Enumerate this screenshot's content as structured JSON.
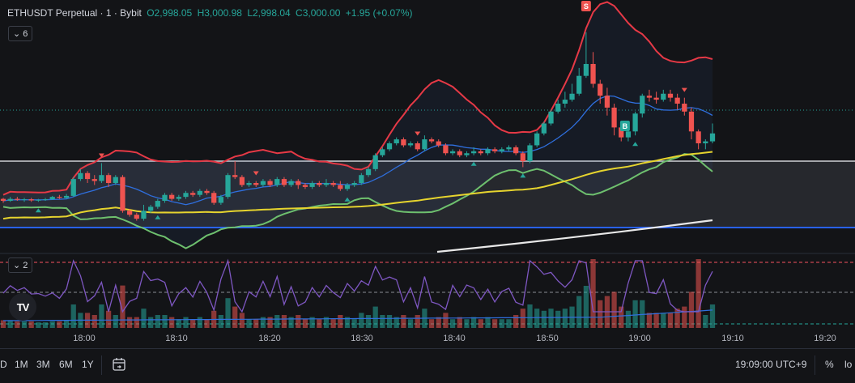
{
  "legend": {
    "symbol": "ETHUSDT Perpetual · 1 · Bybit",
    "open": "O2,998.05",
    "high": "H3,000.98",
    "low": "L2,998.04",
    "close": "C3,000.00",
    "change": "+1.95 (+0.07%)"
  },
  "main_pane_count": "6",
  "volume_pane_count": "2",
  "logo_text": "TV",
  "time_labels": [
    "18:00",
    "18:10",
    "18:20",
    "18:30",
    "18:40",
    "18:50",
    "19:00",
    "19:10",
    "19:20"
  ],
  "range_buttons": [
    "D",
    "1M",
    "3M",
    "6M",
    "1Y"
  ],
  "clock": "19:09:00 UTC+9",
  "percent_label": "%",
  "log_label": "lo",
  "markers": {
    "sell": "S",
    "buy": "B"
  },
  "colors": {
    "up": "#26a69a",
    "down": "#ef5350",
    "bb_upper": "#e63946",
    "bb_lower": "#6ec06e",
    "basis": "#2f6fde",
    "ma_yellow": "#e6d42e",
    "ma_white": "#e8e8e8",
    "hline": "#2962ff",
    "rsi": "#7e57c2"
  },
  "chart_data": {
    "type": "candlestick",
    "symbol": "ETHUSDT Perpetual",
    "interval": "1",
    "exchange": "Bybit",
    "last_ohlc": {
      "open": 2998.05,
      "high": 3000.98,
      "low": 2998.04,
      "close": 3000.0,
      "change": 1.95,
      "change_pct": 0.07
    },
    "x_axis_ticks": [
      "18:00",
      "18:10",
      "18:20",
      "18:30",
      "18:40",
      "18:50",
      "19:00",
      "19:10",
      "19:20"
    ],
    "candles": [
      [
        0.12,
        0.11,
        0.125,
        0.1
      ],
      [
        0.11,
        0.12,
        0.13,
        0.105
      ],
      [
        0.12,
        0.115,
        0.13,
        0.11
      ],
      [
        0.115,
        0.118,
        0.125,
        0.105
      ],
      [
        0.118,
        0.112,
        0.125,
        0.105
      ],
      [
        0.112,
        0.115,
        0.12,
        0.105
      ],
      [
        0.115,
        0.118,
        0.125,
        0.11
      ],
      [
        0.118,
        0.13,
        0.135,
        0.115
      ],
      [
        0.13,
        0.125,
        0.14,
        0.12
      ],
      [
        0.125,
        0.135,
        0.145,
        0.12
      ],
      [
        0.135,
        0.22,
        0.23,
        0.13
      ],
      [
        0.22,
        0.25,
        0.27,
        0.21
      ],
      [
        0.25,
        0.22,
        0.26,
        0.2
      ],
      [
        0.22,
        0.21,
        0.24,
        0.19
      ],
      [
        0.21,
        0.24,
        0.3,
        0.2
      ],
      [
        0.24,
        0.2,
        0.25,
        0.18
      ],
      [
        0.2,
        0.23,
        0.24,
        0.19
      ],
      [
        0.23,
        0.06,
        0.24,
        0.05
      ],
      [
        0.06,
        0.04,
        0.07,
        0.03
      ],
      [
        0.04,
        0.02,
        0.05,
        0.01
      ],
      [
        0.02,
        0.06,
        0.09,
        0.01
      ],
      [
        0.06,
        0.08,
        0.09,
        0.05
      ],
      [
        0.08,
        0.11,
        0.12,
        0.07
      ],
      [
        0.11,
        0.14,
        0.15,
        0.1
      ],
      [
        0.14,
        0.12,
        0.15,
        0.11
      ],
      [
        0.12,
        0.13,
        0.14,
        0.11
      ],
      [
        0.13,
        0.15,
        0.16,
        0.12
      ],
      [
        0.15,
        0.14,
        0.16,
        0.13
      ],
      [
        0.14,
        0.16,
        0.17,
        0.13
      ],
      [
        0.16,
        0.15,
        0.17,
        0.14
      ],
      [
        0.15,
        0.1,
        0.16,
        0.09
      ],
      [
        0.1,
        0.13,
        0.14,
        0.09
      ],
      [
        0.13,
        0.24,
        0.25,
        0.12
      ],
      [
        0.24,
        0.23,
        0.31,
        0.22
      ],
      [
        0.23,
        0.19,
        0.24,
        0.18
      ],
      [
        0.19,
        0.2,
        0.21,
        0.18
      ],
      [
        0.2,
        0.19,
        0.21,
        0.18
      ],
      [
        0.19,
        0.21,
        0.22,
        0.18
      ],
      [
        0.21,
        0.19,
        0.22,
        0.18
      ],
      [
        0.19,
        0.22,
        0.23,
        0.18
      ],
      [
        0.22,
        0.19,
        0.23,
        0.18
      ],
      [
        0.19,
        0.21,
        0.22,
        0.18
      ],
      [
        0.21,
        0.19,
        0.22,
        0.17
      ],
      [
        0.19,
        0.18,
        0.2,
        0.17
      ],
      [
        0.18,
        0.2,
        0.21,
        0.17
      ],
      [
        0.2,
        0.19,
        0.21,
        0.18
      ],
      [
        0.19,
        0.2,
        0.22,
        0.18
      ],
      [
        0.2,
        0.19,
        0.21,
        0.18
      ],
      [
        0.19,
        0.17,
        0.21,
        0.16
      ],
      [
        0.17,
        0.19,
        0.2,
        0.16
      ],
      [
        0.19,
        0.2,
        0.21,
        0.18
      ],
      [
        0.2,
        0.24,
        0.25,
        0.19
      ],
      [
        0.24,
        0.27,
        0.28,
        0.23
      ],
      [
        0.27,
        0.34,
        0.35,
        0.26
      ],
      [
        0.34,
        0.37,
        0.38,
        0.33
      ],
      [
        0.37,
        0.4,
        0.41,
        0.36
      ],
      [
        0.4,
        0.42,
        0.43,
        0.39
      ],
      [
        0.42,
        0.39,
        0.43,
        0.38
      ],
      [
        0.39,
        0.4,
        0.41,
        0.38
      ],
      [
        0.4,
        0.37,
        0.41,
        0.36
      ],
      [
        0.37,
        0.42,
        0.44,
        0.36
      ],
      [
        0.42,
        0.41,
        0.43,
        0.4
      ],
      [
        0.41,
        0.39,
        0.42,
        0.38
      ],
      [
        0.39,
        0.35,
        0.4,
        0.34
      ],
      [
        0.35,
        0.36,
        0.37,
        0.34
      ],
      [
        0.36,
        0.34,
        0.37,
        0.33
      ],
      [
        0.34,
        0.35,
        0.36,
        0.33
      ],
      [
        0.35,
        0.36,
        0.38,
        0.34
      ],
      [
        0.36,
        0.35,
        0.37,
        0.34
      ],
      [
        0.35,
        0.37,
        0.38,
        0.34
      ],
      [
        0.37,
        0.36,
        0.38,
        0.35
      ],
      [
        0.36,
        0.37,
        0.38,
        0.35
      ],
      [
        0.37,
        0.38,
        0.39,
        0.36
      ],
      [
        0.38,
        0.35,
        0.39,
        0.34
      ],
      [
        0.35,
        0.31,
        0.36,
        0.28
      ],
      [
        0.31,
        0.39,
        0.4,
        0.3
      ],
      [
        0.39,
        0.45,
        0.46,
        0.38
      ],
      [
        0.45,
        0.5,
        0.51,
        0.44
      ],
      [
        0.5,
        0.56,
        0.57,
        0.49
      ],
      [
        0.56,
        0.6,
        0.62,
        0.55
      ],
      [
        0.6,
        0.62,
        0.66,
        0.58
      ],
      [
        0.62,
        0.65,
        0.7,
        0.61
      ],
      [
        0.65,
        0.74,
        0.78,
        0.64
      ],
      [
        0.74,
        0.8,
        0.96,
        0.73
      ],
      [
        0.8,
        0.7,
        0.86,
        0.68
      ],
      [
        0.7,
        0.64,
        0.72,
        0.6
      ],
      [
        0.64,
        0.58,
        0.68,
        0.54
      ],
      [
        0.58,
        0.48,
        0.6,
        0.44
      ],
      [
        0.48,
        0.43,
        0.5,
        0.41
      ],
      [
        0.43,
        0.46,
        0.48,
        0.41
      ],
      [
        0.46,
        0.55,
        0.56,
        0.44
      ],
      [
        0.55,
        0.64,
        0.65,
        0.53
      ],
      [
        0.64,
        0.63,
        0.67,
        0.61
      ],
      [
        0.63,
        0.62,
        0.66,
        0.6
      ],
      [
        0.62,
        0.65,
        0.67,
        0.61
      ],
      [
        0.65,
        0.63,
        0.67,
        0.61
      ],
      [
        0.63,
        0.6,
        0.65,
        0.57
      ],
      [
        0.6,
        0.56,
        0.63,
        0.54
      ],
      [
        0.56,
        0.46,
        0.58,
        0.42
      ],
      [
        0.46,
        0.4,
        0.47,
        0.37
      ],
      [
        0.4,
        0.41,
        0.42,
        0.37
      ],
      [
        0.41,
        0.45,
        0.5,
        0.4
      ]
    ]
  }
}
